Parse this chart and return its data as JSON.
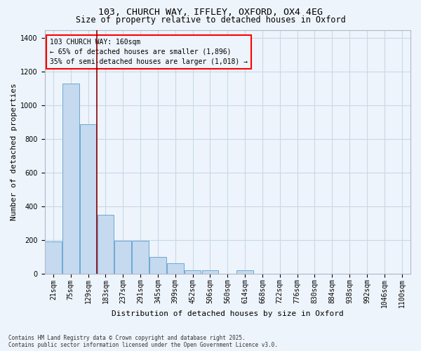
{
  "title_line1": "103, CHURCH WAY, IFFLEY, OXFORD, OX4 4EG",
  "title_line2": "Size of property relative to detached houses in Oxford",
  "xlabel": "Distribution of detached houses by size in Oxford",
  "ylabel": "Number of detached properties",
  "categories": [
    "21sqm",
    "75sqm",
    "129sqm",
    "183sqm",
    "237sqm",
    "291sqm",
    "345sqm",
    "399sqm",
    "452sqm",
    "506sqm",
    "560sqm",
    "614sqm",
    "668sqm",
    "722sqm",
    "776sqm",
    "830sqm",
    "884sqm",
    "938sqm",
    "992sqm",
    "1046sqm",
    "1100sqm"
  ],
  "bar_values": [
    190,
    1130,
    890,
    350,
    195,
    195,
    100,
    60,
    20,
    20,
    0,
    20,
    0,
    0,
    0,
    0,
    0,
    0,
    0,
    0,
    0
  ],
  "bar_color": "#c5d9ef",
  "bar_edge_color": "#6aaad4",
  "grid_color": "#c8d8e8",
  "background_color": "#eef4fb",
  "red_line_x": 2.5,
  "annotation_text": "103 CHURCH WAY: 160sqm\n← 65% of detached houses are smaller (1,896)\n35% of semi-detached houses are larger (1,018) →",
  "ylim": [
    0,
    1450
  ],
  "yticks": [
    0,
    200,
    400,
    600,
    800,
    1000,
    1200,
    1400
  ],
  "footer_line1": "Contains HM Land Registry data © Crown copyright and database right 2025.",
  "footer_line2": "Contains public sector information licensed under the Open Government Licence v3.0.",
  "title_fontsize": 9.5,
  "subtitle_fontsize": 8.5,
  "axis_label_fontsize": 8,
  "tick_fontsize": 7,
  "annotation_fontsize": 7,
  "footer_fontsize": 5.5
}
